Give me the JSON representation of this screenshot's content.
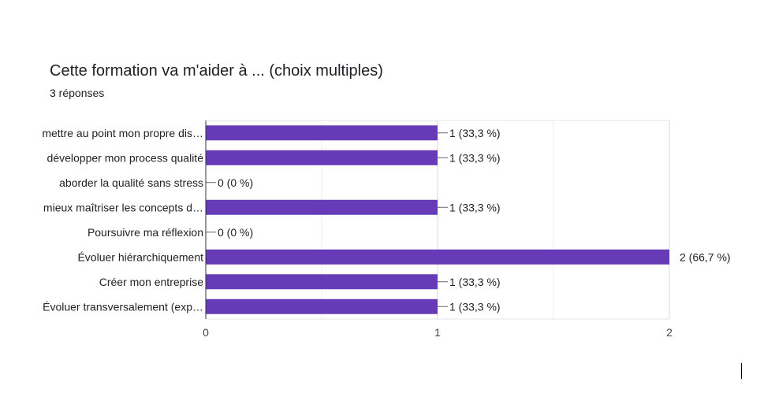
{
  "header": {
    "title": "Cette formation va m'aider à ... (choix multiples)",
    "subtitle": "3 réponses"
  },
  "chart_data": {
    "type": "bar",
    "orientation": "horizontal",
    "title": "Cette formation va m'aider à ... (choix multiples)",
    "xlabel": "",
    "ylabel": "",
    "xlim": [
      0,
      2
    ],
    "xticks": [
      "0",
      "1",
      "2"
    ],
    "grid": true,
    "color": "#673ab7",
    "categories": [
      "mettre au point mon propre dis…",
      "développer mon process qualité",
      "aborder la qualité sans stress",
      "mieux maîtriser les concepts d…",
      "Poursuivre ma réflexion",
      "Évoluer hiérarchiquement",
      "Créer mon entreprise",
      "Évoluer transversalement (exp…"
    ],
    "values": [
      1,
      1,
      0,
      1,
      0,
      2,
      1,
      1
    ],
    "labels": [
      "1 (33,3 %)",
      "1 (33,3 %)",
      "0 (0 %)",
      "1 (33,3 %)",
      "0 (0 %)",
      "2 (66,7 %)",
      "1 (33,3 %)",
      "1 (33,3 %)"
    ]
  }
}
